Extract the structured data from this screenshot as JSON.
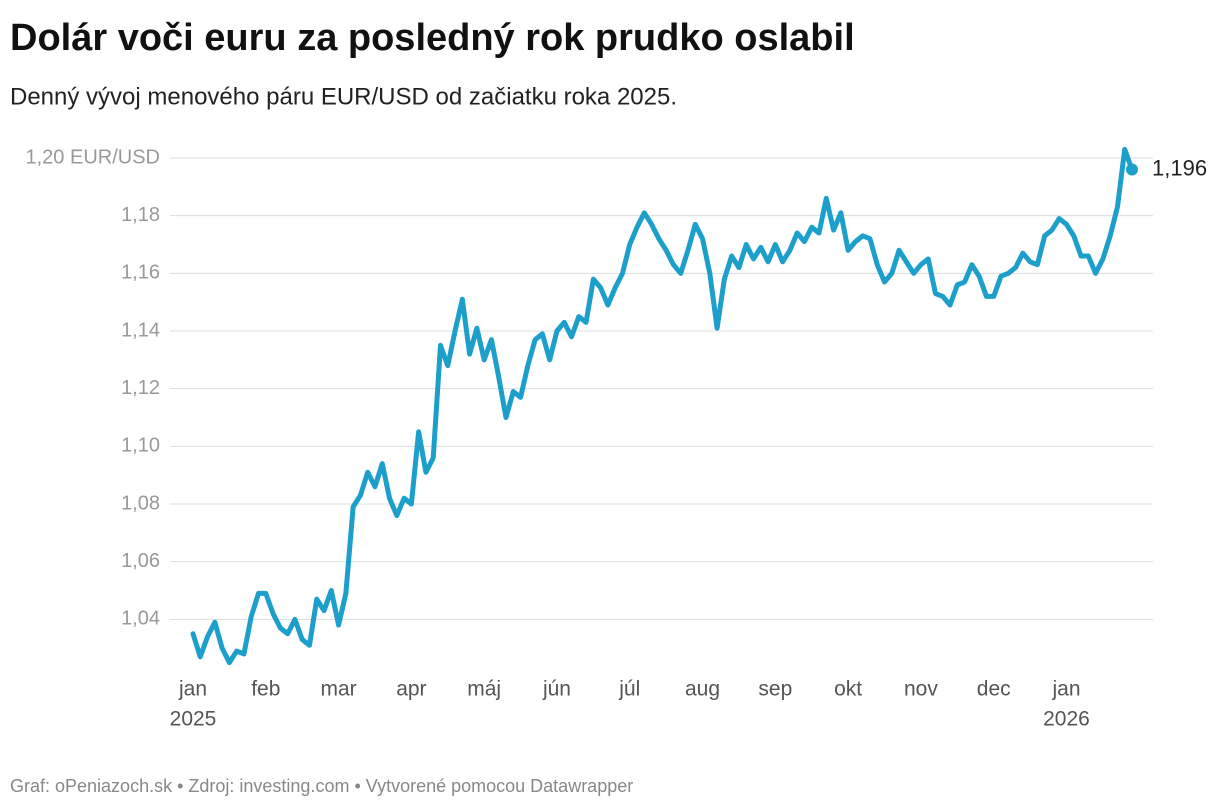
{
  "chart_data": {
    "type": "line",
    "title": "Dolár voči euru za posledný rok prudko oslabil",
    "subtitle": "Denný vývoj menového páru EUR/USD od začiatku roka 2025.",
    "footer": "Graf: oPeniazoch.sk • Zdroj: investing.com • Vytvorené pomocou Datawrapper",
    "categories": [
      "jan",
      null,
      null,
      null,
      null,
      null,
      null,
      null,
      null,
      null,
      "feb",
      null,
      null,
      null,
      null,
      null,
      null,
      null,
      null,
      null,
      "mar",
      null,
      null,
      null,
      null,
      null,
      null,
      null,
      null,
      null,
      "apr",
      null,
      null,
      null,
      null,
      null,
      null,
      null,
      null,
      null,
      "máj",
      null,
      null,
      null,
      null,
      null,
      null,
      null,
      null,
      null,
      "jún",
      null,
      null,
      null,
      null,
      null,
      null,
      null,
      null,
      null,
      "júl",
      null,
      null,
      null,
      null,
      null,
      null,
      null,
      null,
      null,
      "aug",
      null,
      null,
      null,
      null,
      null,
      null,
      null,
      null,
      null,
      "sep",
      null,
      null,
      null,
      null,
      null,
      null,
      null,
      null,
      null,
      "okt",
      null,
      null,
      null,
      null,
      null,
      null,
      null,
      null,
      null,
      "nov",
      null,
      null,
      null,
      null,
      null,
      null,
      null,
      null,
      null,
      "dec",
      null,
      null,
      null,
      null,
      null,
      null,
      null,
      null,
      null,
      "jan",
      null,
      null,
      null,
      null,
      null,
      null,
      null,
      null,
      null
    ],
    "years": [
      "2025",
      null,
      null,
      null,
      null,
      null,
      null,
      null,
      null,
      null,
      null,
      null,
      null,
      null,
      null,
      null,
      null,
      null,
      null,
      null,
      null,
      null,
      null,
      null,
      null,
      null,
      null,
      null,
      null,
      null,
      null,
      null,
      null,
      null,
      null,
      null,
      null,
      null,
      null,
      null,
      null,
      null,
      null,
      null,
      null,
      null,
      null,
      null,
      null,
      null,
      null,
      null,
      null,
      null,
      null,
      null,
      null,
      null,
      null,
      null,
      null,
      null,
      null,
      null,
      null,
      null,
      null,
      null,
      null,
      null,
      null,
      null,
      null,
      null,
      null,
      null,
      null,
      null,
      null,
      null,
      null,
      null,
      null,
      null,
      null,
      null,
      null,
      null,
      null,
      null,
      null,
      null,
      null,
      null,
      null,
      null,
      null,
      null,
      null,
      null,
      null,
      null,
      null,
      null,
      null,
      null,
      null,
      null,
      null,
      null,
      null,
      null,
      null,
      null,
      null,
      null,
      null,
      null,
      null,
      null,
      "2026",
      null,
      null,
      null,
      null,
      null,
      null,
      null,
      null,
      null
    ],
    "values": [
      1.035,
      1.027,
      1.034,
      1.039,
      1.03,
      1.025,
      1.029,
      1.028,
      1.041,
      1.049,
      1.049,
      1.042,
      1.037,
      1.035,
      1.04,
      1.033,
      1.031,
      1.047,
      1.043,
      1.05,
      1.038,
      1.049,
      1.079,
      1.083,
      1.091,
      1.086,
      1.094,
      1.082,
      1.076,
      1.082,
      1.08,
      1.105,
      1.091,
      1.096,
      1.135,
      1.128,
      1.14,
      1.151,
      1.132,
      1.141,
      1.13,
      1.137,
      1.124,
      1.11,
      1.119,
      1.117,
      1.128,
      1.137,
      1.139,
      1.13,
      1.14,
      1.143,
      1.138,
      1.145,
      1.143,
      1.158,
      1.155,
      1.149,
      1.155,
      1.16,
      1.17,
      1.176,
      1.181,
      1.177,
      1.172,
      1.168,
      1.163,
      1.16,
      1.168,
      1.177,
      1.172,
      1.16,
      1.141,
      1.158,
      1.166,
      1.162,
      1.17,
      1.165,
      1.169,
      1.164,
      1.17,
      1.164,
      1.168,
      1.174,
      1.171,
      1.176,
      1.174,
      1.186,
      1.175,
      1.181,
      1.168,
      1.171,
      1.173,
      1.172,
      1.163,
      1.157,
      1.16,
      1.168,
      1.164,
      1.16,
      1.163,
      1.165,
      1.153,
      1.152,
      1.149,
      1.156,
      1.157,
      1.163,
      1.159,
      1.152,
      1.152,
      1.159,
      1.16,
      1.162,
      1.167,
      1.164,
      1.163,
      1.173,
      1.175,
      1.179,
      1.177,
      1.173,
      1.166,
      1.166,
      1.16,
      1.165,
      1.173,
      1.183,
      1.203,
      1.196
    ],
    "value_labels": [
      null,
      null,
      null,
      null,
      null,
      null,
      null,
      null,
      null,
      null,
      null,
      null,
      null,
      null,
      null,
      null,
      null,
      null,
      null,
      null,
      null,
      null,
      null,
      null,
      null,
      null,
      null,
      null,
      null,
      null,
      null,
      null,
      null,
      null,
      null,
      null,
      null,
      null,
      null,
      null,
      null,
      null,
      null,
      null,
      null,
      null,
      null,
      null,
      null,
      null,
      null,
      null,
      null,
      null,
      null,
      null,
      null,
      null,
      null,
      null,
      null,
      null,
      null,
      null,
      null,
      null,
      null,
      null,
      null,
      null,
      null,
      null,
      null,
      null,
      null,
      null,
      null,
      null,
      null,
      null,
      null,
      null,
      null,
      null,
      null,
      null,
      null,
      null,
      null,
      null,
      null,
      null,
      null,
      null,
      null,
      null,
      null,
      null,
      null,
      null,
      null,
      null,
      null,
      null,
      null,
      null,
      null,
      null,
      null,
      null,
      null,
      null,
      null,
      null,
      null,
      null,
      null,
      null,
      null,
      null,
      null,
      null,
      null,
      null,
      null,
      null,
      null,
      null,
      null,
      "1,196"
    ],
    "color": "#1d9fcc",
    "ylim": [
      1.02,
      1.205
    ],
    "yticks": [
      {
        "value": 1.04,
        "label": "1,04"
      },
      {
        "value": 1.06,
        "label": "1,06"
      },
      {
        "value": 1.08,
        "label": "1,08"
      },
      {
        "value": 1.1,
        "label": "1,10"
      },
      {
        "value": 1.12,
        "label": "1,12"
      },
      {
        "value": 1.14,
        "label": "1,14"
      },
      {
        "value": 1.16,
        "label": "1,16"
      },
      {
        "value": 1.18,
        "label": "1,18"
      },
      {
        "value": 1.2,
        "label": "1,20 EUR/USD"
      }
    ],
    "grid": true
  }
}
